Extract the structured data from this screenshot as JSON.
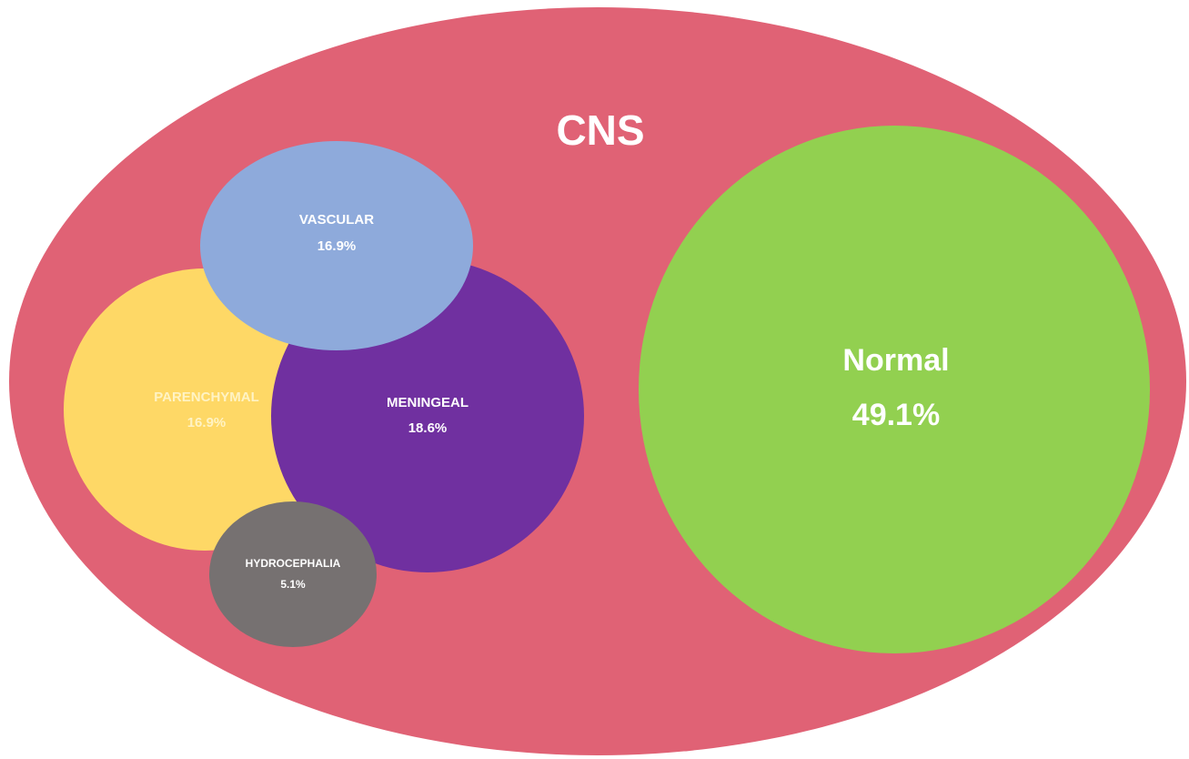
{
  "title": "CNS",
  "nodes": [
    {
      "label": "Normal",
      "value": "49.1%"
    },
    {
      "label": "MENINGEAL",
      "value": "18.6%"
    },
    {
      "label": "PARENCHYMAL",
      "value": "16.9%"
    },
    {
      "label": "VASCULAR",
      "value": "16.9%"
    },
    {
      "label": "HYDROCEPHALIA",
      "value": "5.1%"
    }
  ]
}
